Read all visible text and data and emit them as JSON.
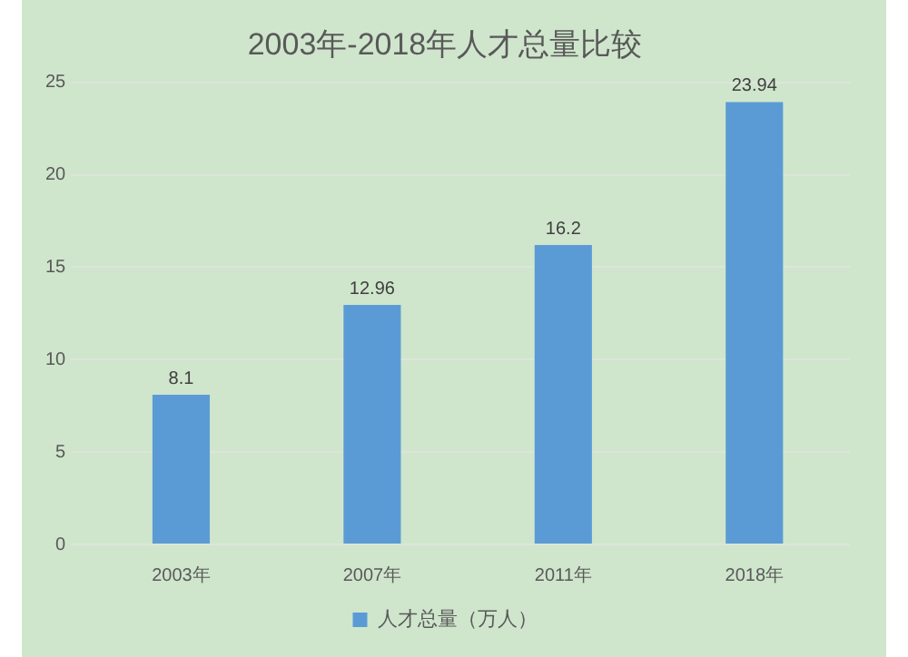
{
  "chart_data": {
    "type": "bar",
    "title": "2003年-2018年人才总量比较",
    "categories": [
      "2003年",
      "2007年",
      "2011年",
      "2018年"
    ],
    "series": [
      {
        "name": "人才总量（万人）",
        "color": "#5b9bd5",
        "values": [
          8.1,
          12.96,
          16.2,
          23.94
        ]
      }
    ],
    "ylim": [
      0,
      25
    ],
    "yticks": [
      0,
      5,
      10,
      15,
      20,
      25
    ],
    "grid": "y",
    "legend": "bottom",
    "data_labels": true
  }
}
